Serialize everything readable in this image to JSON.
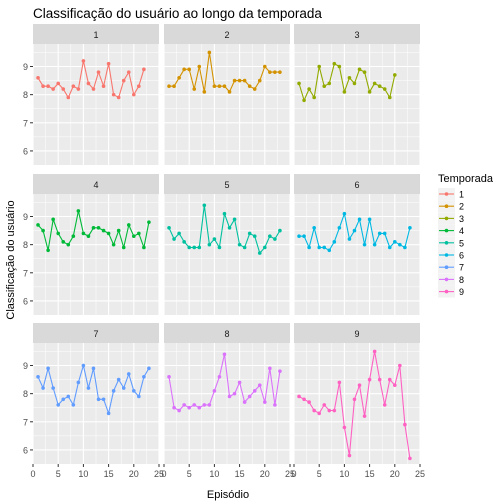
{
  "chart_data": {
    "type": "line",
    "title": "Classificação do usuário ao longo da temporada",
    "xlabel": "Episódio",
    "ylabel": "Classificação do usuário",
    "xlim": [
      0,
      25
    ],
    "ylim": [
      5.5,
      9.8
    ],
    "xticks": [
      0,
      5,
      10,
      15,
      20,
      25
    ],
    "yticks": [
      6,
      7,
      8,
      9
    ],
    "grid": true,
    "facet_layout": "3x3",
    "legend": {
      "title": "Temporada",
      "position": "right"
    },
    "series": [
      {
        "name": "1",
        "color": "#F8766D",
        "x": [
          1,
          2,
          3,
          4,
          5,
          6,
          7,
          8,
          9,
          10,
          11,
          12,
          13,
          14,
          15,
          16,
          17,
          18,
          19,
          20,
          21,
          22
        ],
        "values": [
          8.6,
          8.3,
          8.3,
          8.2,
          8.4,
          8.2,
          7.9,
          8.3,
          8.2,
          9.2,
          8.4,
          8.2,
          8.8,
          8.3,
          9.1,
          8.0,
          7.9,
          8.5,
          8.8,
          8.0,
          8.3,
          8.9
        ]
      },
      {
        "name": "2",
        "color": "#D39200",
        "x": [
          1,
          2,
          3,
          4,
          5,
          6,
          7,
          8,
          9,
          10,
          11,
          12,
          13,
          14,
          15,
          16,
          17,
          18,
          19,
          20,
          21,
          22,
          23
        ],
        "values": [
          8.3,
          8.3,
          8.6,
          8.9,
          8.9,
          8.2,
          9.0,
          8.1,
          9.5,
          8.3,
          8.3,
          8.3,
          8.1,
          8.5,
          8.5,
          8.5,
          8.3,
          8.2,
          8.5,
          9.0,
          8.8,
          8.8,
          8.8
        ]
      },
      {
        "name": "3",
        "color": "#93AA00",
        "x": [
          1,
          2,
          3,
          4,
          5,
          6,
          7,
          8,
          9,
          10,
          11,
          12,
          13,
          14,
          15,
          16,
          17,
          18,
          19,
          20
        ],
        "values": [
          8.4,
          7.8,
          8.2,
          7.9,
          9.0,
          8.3,
          8.4,
          9.1,
          9.0,
          8.1,
          8.6,
          8.4,
          8.9,
          8.8,
          8.1,
          8.4,
          8.3,
          8.2,
          7.9,
          8.7
        ]
      },
      {
        "name": "4",
        "color": "#00BA38",
        "x": [
          1,
          2,
          3,
          4,
          5,
          6,
          7,
          8,
          9,
          10,
          11,
          12,
          13,
          14,
          15,
          16,
          17,
          18,
          19,
          20,
          21,
          22,
          23
        ],
        "values": [
          8.7,
          8.5,
          7.8,
          8.9,
          8.4,
          8.1,
          8.0,
          8.3,
          9.2,
          8.4,
          8.3,
          8.6,
          8.6,
          8.5,
          8.4,
          8.0,
          8.5,
          7.9,
          8.7,
          8.3,
          8.4,
          7.9,
          8.8
        ]
      },
      {
        "name": "5",
        "color": "#00C19F",
        "x": [
          1,
          2,
          3,
          4,
          5,
          6,
          7,
          8,
          9,
          10,
          11,
          12,
          13,
          14,
          15,
          16,
          17,
          18,
          19,
          20,
          21,
          22,
          23
        ],
        "values": [
          8.6,
          8.2,
          8.4,
          8.1,
          7.9,
          7.9,
          7.9,
          9.4,
          8.0,
          8.2,
          7.9,
          9.1,
          8.6,
          8.9,
          8.0,
          7.9,
          8.4,
          8.3,
          7.7,
          7.9,
          8.3,
          8.2,
          8.5
        ]
      },
      {
        "name": "6",
        "color": "#00B9E3",
        "x": [
          1,
          2,
          3,
          4,
          5,
          6,
          7,
          8,
          9,
          10,
          11,
          12,
          13,
          14,
          15,
          16,
          17,
          18,
          19,
          20,
          21,
          22,
          23
        ],
        "values": [
          8.3,
          8.3,
          7.9,
          8.6,
          7.9,
          7.9,
          7.8,
          8.1,
          8.6,
          9.1,
          8.2,
          8.5,
          8.9,
          8.0,
          8.9,
          8.0,
          8.4,
          8.4,
          7.9,
          8.1,
          8.0,
          7.9,
          8.6
        ]
      },
      {
        "name": "7",
        "color": "#619CFF",
        "x": [
          1,
          2,
          3,
          4,
          5,
          6,
          7,
          8,
          9,
          10,
          11,
          12,
          13,
          14,
          15,
          16,
          17,
          18,
          19,
          20,
          21,
          22,
          23
        ],
        "values": [
          8.6,
          8.2,
          8.9,
          8.2,
          7.6,
          7.8,
          7.9,
          7.6,
          8.4,
          9.0,
          8.2,
          8.9,
          7.8,
          7.8,
          7.3,
          8.1,
          8.5,
          8.2,
          8.7,
          8.1,
          7.9,
          8.6,
          8.9
        ]
      },
      {
        "name": "8",
        "color": "#DB72FB",
        "x": [
          1,
          2,
          3,
          4,
          5,
          6,
          7,
          8,
          9,
          10,
          11,
          12,
          13,
          14,
          15,
          16,
          17,
          18,
          19,
          20,
          21,
          22,
          23
        ],
        "values": [
          8.6,
          7.5,
          7.4,
          7.6,
          7.5,
          7.6,
          7.5,
          7.6,
          7.6,
          8.1,
          8.6,
          9.4,
          7.9,
          8.0,
          8.4,
          7.7,
          7.9,
          8.1,
          8.3,
          7.7,
          8.9,
          7.6,
          8.8
        ]
      },
      {
        "name": "9",
        "color": "#FF61C3",
        "x": [
          1,
          2,
          3,
          4,
          5,
          6,
          7,
          8,
          9,
          10,
          11,
          12,
          13,
          14,
          15,
          16,
          17,
          18,
          19,
          20,
          21,
          22,
          23
        ],
        "values": [
          7.9,
          7.8,
          7.7,
          7.4,
          7.3,
          7.6,
          7.4,
          7.4,
          8.4,
          6.8,
          5.8,
          7.8,
          8.3,
          7.2,
          8.5,
          9.5,
          8.5,
          7.6,
          8.5,
          8.3,
          9.0,
          6.9,
          5.7
        ]
      }
    ]
  }
}
